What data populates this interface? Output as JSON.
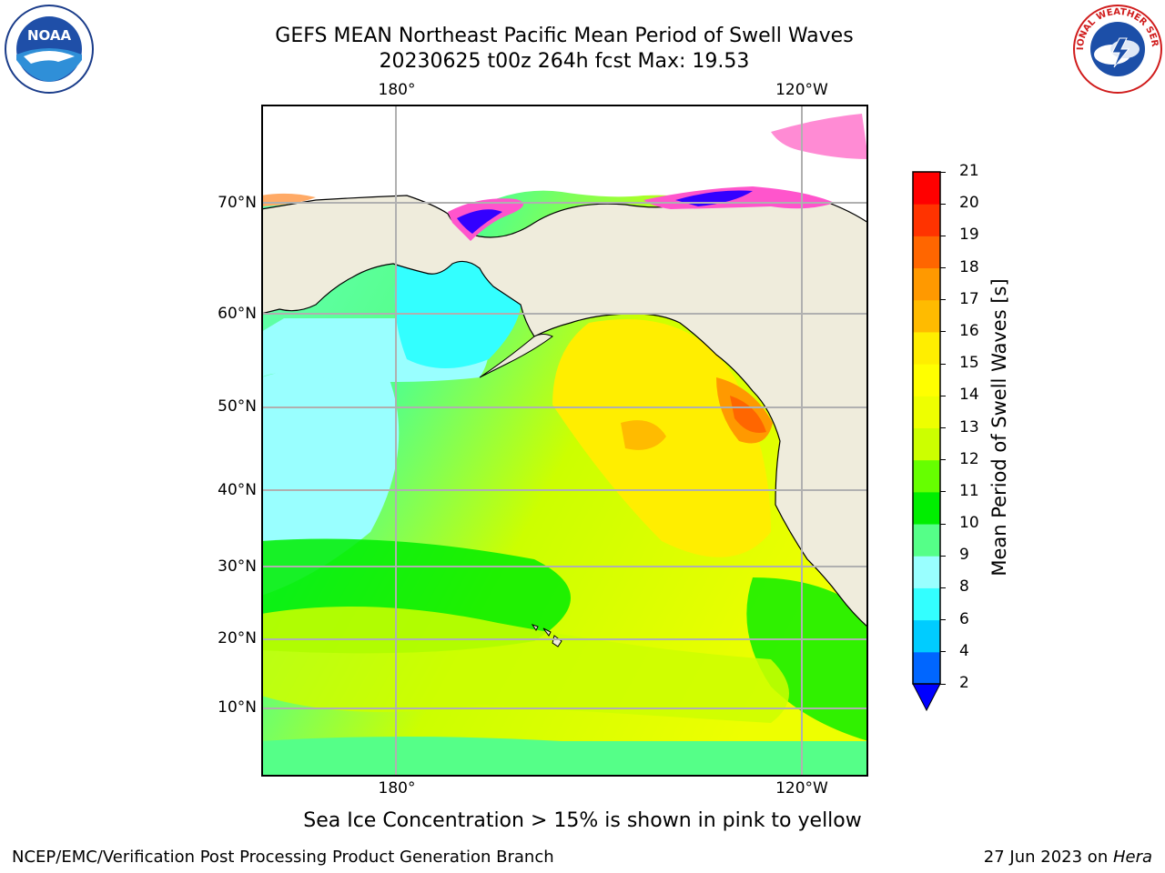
{
  "title": {
    "line1": "GEFS MEAN Northeast Pacific Mean Period of Swell Waves",
    "line2": "20230625 t00z 264h fcst   Max: 19.53"
  },
  "map": {
    "lon_labels_top": [
      "180°",
      "120°W"
    ],
    "lon_labels_bottom": [
      "180°",
      "120°W"
    ],
    "lat_labels": [
      "70°N",
      "60°N",
      "50°N",
      "40°N",
      "30°N",
      "20°N",
      "10°N"
    ],
    "land_color": "#efecdc",
    "grid_color": "#b0b0b0"
  },
  "colorbar": {
    "title": "Mean Period of Swell Waves [s]",
    "ticks": [
      "2",
      "4",
      "6",
      "8",
      "9",
      "10",
      "11",
      "12",
      "13",
      "14",
      "15",
      "16",
      "17",
      "18",
      "19",
      "20",
      "21"
    ],
    "colors": [
      "#0066ff",
      "#00ccff",
      "#33ffff",
      "#99ffff",
      "#55ff88",
      "#00ee00",
      "#66ff00",
      "#ccff00",
      "#eeff00",
      "#ffff00",
      "#ffee00",
      "#ffbb00",
      "#ff9900",
      "#ff6600",
      "#ff3300",
      "#ff0000"
    ],
    "extend_color": "#0000ff"
  },
  "note": "Sea Ice Concentration > 15% is shown in pink to yellow",
  "footer": {
    "left": "NCEP/EMC/Verification Post Processing Product Generation Branch",
    "right_prefix": "27 Jun 2023 on ",
    "right_host": "Hera"
  },
  "logos": {
    "noaa_text": "NOAA",
    "nws_text": "NATIONAL WEATHER SERVICE"
  }
}
